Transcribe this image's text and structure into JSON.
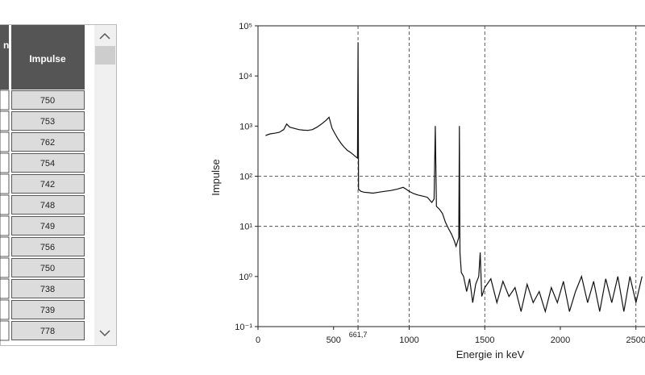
{
  "table": {
    "headers": [
      "n",
      "Impulse"
    ],
    "impulse": [
      750,
      753,
      762,
      754,
      742,
      748,
      749,
      756,
      750,
      738,
      739,
      778
    ]
  },
  "chart_data": {
    "type": "line",
    "y_label": "Impulse",
    "x_label": "Energie in keV",
    "log_y": true,
    "color": "#111111",
    "xlim": [
      0,
      2560
    ],
    "ylim": [
      0.1,
      100000
    ],
    "xticks": [
      0,
      500,
      {
        "value": 661.7,
        "label": "661,7"
      },
      1000,
      1500,
      2000,
      2500
    ],
    "yticks": [
      {
        "value": 0.1,
        "label": "10⁻¹"
      },
      {
        "value": 1,
        "label": "10⁰"
      },
      {
        "value": 10,
        "label": "10¹"
      },
      {
        "value": 100,
        "label": "10²"
      },
      {
        "value": 1000,
        "label": "10³"
      },
      {
        "value": 10000,
        "label": "10⁴"
      },
      {
        "value": 100000,
        "label": "10⁵"
      }
    ],
    "xgrid": [
      661.7,
      1000,
      1500,
      2500
    ],
    "ygrid": [
      10,
      100
    ],
    "x": [
      50,
      80,
      110,
      140,
      170,
      190,
      210,
      240,
      270,
      300,
      330,
      360,
      390,
      420,
      450,
      470,
      490,
      510,
      530,
      550,
      570,
      590,
      610,
      630,
      650,
      658,
      661.7,
      665,
      680,
      700,
      730,
      760,
      800,
      840,
      880,
      920,
      960,
      980,
      1000,
      1030,
      1060,
      1090,
      1120,
      1150,
      1165,
      1173,
      1180,
      1200,
      1220,
      1240,
      1260,
      1280,
      1300,
      1310,
      1320,
      1328,
      1332,
      1336,
      1345,
      1360,
      1380,
      1400,
      1420,
      1440,
      1460,
      1470,
      1480,
      1500,
      1540,
      1580,
      1620,
      1660,
      1700,
      1740,
      1780,
      1820,
      1860,
      1900,
      1940,
      1980,
      2020,
      2060,
      2100,
      2140,
      2180,
      2220,
      2260,
      2300,
      2340,
      2380,
      2420,
      2460,
      2500,
      2540
    ],
    "values": [
      650,
      700,
      720,
      750,
      850,
      1100,
      950,
      900,
      850,
      830,
      820,
      850,
      950,
      1100,
      1300,
      1500,
      900,
      700,
      550,
      450,
      380,
      330,
      300,
      270,
      240,
      230,
      47000,
      55,
      50,
      48,
      47,
      46,
      48,
      50,
      52,
      55,
      60,
      55,
      50,
      45,
      42,
      40,
      38,
      30,
      35,
      1000,
      25,
      22,
      18,
      12,
      9,
      7,
      5,
      4,
      5,
      6,
      1000,
      3,
      1.2,
      1.0,
      0.5,
      0.9,
      0.3,
      0.7,
      1.0,
      3,
      0.4,
      0.6,
      0.9,
      0.3,
      0.8,
      0.4,
      0.6,
      0.2,
      0.7,
      0.3,
      0.5,
      0.2,
      0.6,
      0.3,
      0.8,
      0.2,
      0.5,
      1.0,
      0.3,
      0.8,
      0.2,
      0.9,
      0.3,
      1.0,
      0.2,
      1.0,
      0.3,
      1.0
    ]
  }
}
